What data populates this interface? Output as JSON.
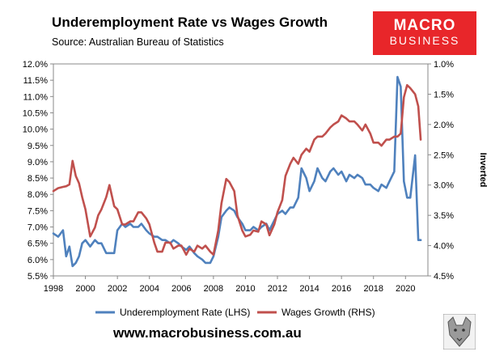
{
  "header": {
    "title": "Underemployment Rate vs Wages Growth",
    "source": "Source: Australian Bureau of Statistics"
  },
  "logo": {
    "line1": "MACRO",
    "line2": "BUSINESS"
  },
  "footer": {
    "url": "www.macrobusiness.com.au"
  },
  "chart_data": {
    "type": "line",
    "title": "Underemployment Rate vs Wages Growth",
    "xlabel": "",
    "ylabel": "",
    "y2label": "Inverted",
    "xlim": [
      1998,
      2021.4
    ],
    "ylim": [
      5.5,
      12.0
    ],
    "y2lim": [
      1.0,
      4.5
    ],
    "y2_inverted": true,
    "x_ticks": [
      "1998",
      "2000",
      "2002",
      "2004",
      "2006",
      "2008",
      "2010",
      "2012",
      "2014",
      "2016",
      "2018",
      "2020"
    ],
    "y_ticks": [
      "12.0%",
      "11.5%",
      "11.0%",
      "10.5%",
      "10.0%",
      "9.5%",
      "9.0%",
      "8.5%",
      "8.0%",
      "7.5%",
      "7.0%",
      "6.5%",
      "6.0%",
      "5.5%"
    ],
    "y2_ticks": [
      "1.0%",
      "1.5%",
      "2.0%",
      "2.5%",
      "3.0%",
      "3.5%",
      "4.0%",
      "4.5%"
    ],
    "grid": false,
    "legend_position": "bottom",
    "colors": {
      "underemployment": "#4f81bd",
      "wages": "#c0504d"
    },
    "series": [
      {
        "name": "Underemployment Rate (LHS)",
        "axis": "left",
        "x": [
          1998.0,
          1998.3,
          1998.6,
          1998.8,
          1999.0,
          1999.2,
          1999.4,
          1999.6,
          1999.8,
          2000.0,
          2000.3,
          2000.6,
          2000.8,
          2001.0,
          2001.3,
          2001.5,
          2001.8,
          2002.0,
          2002.3,
          2002.5,
          2002.8,
          2003.0,
          2003.3,
          2003.5,
          2003.8,
          2004.0,
          2004.3,
          2004.5,
          2004.8,
          2005.0,
          2005.3,
          2005.5,
          2005.8,
          2006.0,
          2006.3,
          2006.5,
          2006.8,
          2007.0,
          2007.3,
          2007.5,
          2007.8,
          2008.0,
          2008.3,
          2008.5,
          2008.8,
          2009.0,
          2009.3,
          2009.5,
          2009.8,
          2010.0,
          2010.3,
          2010.5,
          2010.8,
          2011.0,
          2011.3,
          2011.5,
          2011.8,
          2012.0,
          2012.3,
          2012.5,
          2012.8,
          2013.0,
          2013.3,
          2013.5,
          2013.8,
          2014.0,
          2014.3,
          2014.5,
          2014.8,
          2015.0,
          2015.3,
          2015.5,
          2015.8,
          2016.0,
          2016.3,
          2016.5,
          2016.8,
          2017.0,
          2017.3,
          2017.5,
          2017.8,
          2018.0,
          2018.3,
          2018.5,
          2018.8,
          2019.0,
          2019.3,
          2019.5,
          2019.7,
          2019.9,
          2020.1,
          2020.3,
          2020.6,
          2020.8,
          2020.95
        ],
        "values": [
          6.8,
          6.7,
          6.9,
          6.1,
          6.4,
          5.8,
          5.9,
          6.1,
          6.5,
          6.6,
          6.4,
          6.6,
          6.5,
          6.5,
          6.2,
          6.2,
          6.2,
          6.9,
          7.1,
          7.0,
          7.1,
          7.0,
          7.0,
          7.1,
          6.9,
          6.8,
          6.7,
          6.7,
          6.6,
          6.6,
          6.5,
          6.6,
          6.5,
          6.4,
          6.3,
          6.4,
          6.2,
          6.1,
          6.0,
          5.9,
          5.9,
          6.1,
          6.7,
          7.3,
          7.5,
          7.6,
          7.5,
          7.3,
          7.1,
          6.9,
          6.9,
          7.0,
          6.9,
          7.0,
          7.1,
          6.9,
          7.2,
          7.4,
          7.5,
          7.4,
          7.6,
          7.6,
          7.9,
          8.8,
          8.5,
          8.1,
          8.4,
          8.8,
          8.5,
          8.4,
          8.7,
          8.8,
          8.6,
          8.7,
          8.4,
          8.6,
          8.5,
          8.6,
          8.5,
          8.3,
          8.3,
          8.2,
          8.1,
          8.3,
          8.2,
          8.4,
          8.7,
          11.6,
          11.3,
          8.4,
          7.9,
          7.9,
          9.2,
          6.6,
          6.6
        ]
      },
      {
        "name": "Wages Growth (RHS)",
        "axis": "right",
        "x": [
          1998.0,
          1998.3,
          1998.6,
          1998.8,
          1999.0,
          1999.2,
          1999.4,
          1999.6,
          1999.8,
          2000.0,
          2000.3,
          2000.6,
          2000.8,
          2001.0,
          2001.3,
          2001.5,
          2001.8,
          2002.0,
          2002.3,
          2002.5,
          2002.8,
          2003.0,
          2003.3,
          2003.5,
          2003.8,
          2004.0,
          2004.3,
          2004.5,
          2004.8,
          2005.0,
          2005.3,
          2005.5,
          2005.8,
          2006.0,
          2006.3,
          2006.5,
          2006.8,
          2007.0,
          2007.3,
          2007.5,
          2007.8,
          2008.0,
          2008.3,
          2008.5,
          2008.8,
          2009.0,
          2009.3,
          2009.5,
          2009.8,
          2010.0,
          2010.3,
          2010.5,
          2010.8,
          2011.0,
          2011.3,
          2011.5,
          2011.8,
          2012.0,
          2012.3,
          2012.5,
          2012.8,
          2013.0,
          2013.3,
          2013.5,
          2013.8,
          2014.0,
          2014.3,
          2014.5,
          2014.8,
          2015.0,
          2015.3,
          2015.5,
          2015.8,
          2016.0,
          2016.3,
          2016.5,
          2016.8,
          2017.0,
          2017.3,
          2017.5,
          2017.8,
          2018.0,
          2018.3,
          2018.5,
          2018.8,
          2019.0,
          2019.3,
          2019.5,
          2019.7,
          2019.9,
          2020.1,
          2020.3,
          2020.6,
          2020.8,
          2020.95
        ],
        "values": [
          3.1,
          3.05,
          3.03,
          3.02,
          2.99,
          2.6,
          2.85,
          2.97,
          3.2,
          3.4,
          3.85,
          3.7,
          3.5,
          3.4,
          3.2,
          3.0,
          3.35,
          3.4,
          3.65,
          3.65,
          3.6,
          3.6,
          3.45,
          3.45,
          3.55,
          3.65,
          3.95,
          4.1,
          4.1,
          3.95,
          3.95,
          4.05,
          4.0,
          4.0,
          4.15,
          4.05,
          4.1,
          4.0,
          4.05,
          4.0,
          4.1,
          4.15,
          3.75,
          3.3,
          2.9,
          2.95,
          3.1,
          3.5,
          3.75,
          3.85,
          3.82,
          3.75,
          3.77,
          3.6,
          3.65,
          3.83,
          3.65,
          3.45,
          3.25,
          2.85,
          2.65,
          2.55,
          2.65,
          2.5,
          2.4,
          2.45,
          2.25,
          2.2,
          2.2,
          2.15,
          2.05,
          2.0,
          1.95,
          1.85,
          1.9,
          1.95,
          1.95,
          2.0,
          2.1,
          2.0,
          2.15,
          2.3,
          2.3,
          2.35,
          2.25,
          2.25,
          2.2,
          2.2,
          2.15,
          1.55,
          1.35,
          1.4,
          1.5,
          1.7,
          2.25
        ]
      }
    ]
  }
}
